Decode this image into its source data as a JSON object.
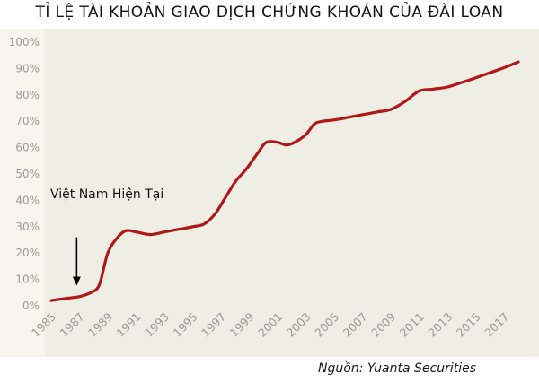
{
  "title": "TỈ LỆ TÀI KHOẢN GIAO DỊCH CHỨNG KHOÁN CỦA ĐÀI LOAN",
  "source": "Nguồn: Yuanta Securities",
  "annotation": "Việt Nam Hiện Tại",
  "colors": {
    "line": "#b01818",
    "plot_bg": "#eeeee4",
    "tick_text": "#999999",
    "arrow": "#000000"
  },
  "chart_data": {
    "type": "line",
    "title": "TỈ LỆ TÀI KHOẢN GIAO DỊCH CHỨNG KHOÁN CỦA ĐÀI LOAN",
    "xlabel": "",
    "ylabel": "",
    "xlim": [
      1985,
      2018
    ],
    "ylim": [
      0,
      100
    ],
    "grid": false,
    "x_ticks": [
      "1985",
      "1987",
      "1989",
      "1991",
      "1993",
      "1995",
      "1997",
      "1999",
      "2001",
      "2003",
      "2005",
      "2007",
      "2009",
      "2011",
      "2013",
      "2015",
      "2017"
    ],
    "y_ticks": [
      "0%",
      "10%",
      "20%",
      "30%",
      "40%",
      "50%",
      "60%",
      "70%",
      "80%",
      "90%",
      "100%"
    ],
    "series": [
      {
        "x": [
          1985,
          1986,
          1987,
          1987.8,
          1988.4,
          1989,
          1989.7,
          1990.3,
          1991,
          1992,
          1993,
          1994,
          1995,
          1995.8,
          1996.6,
          1997.3,
          1998,
          1998.8,
          1999.6,
          2000.2,
          2001,
          2001.6,
          2002.2,
          2003,
          2003.6,
          2004.2,
          2005,
          2006,
          2007,
          2008,
          2009,
          2010,
          2011,
          2012,
          2013,
          2014,
          2015,
          2016,
          2017,
          2018
        ],
        "y": [
          2,
          2.8,
          3.5,
          5,
          8,
          20,
          26,
          28.5,
          28,
          27,
          28,
          29,
          30,
          31,
          35,
          41,
          47,
          52,
          58,
          62,
          62,
          61,
          62,
          65,
          69,
          70,
          70.5,
          71.5,
          72.5,
          73.5,
          74.5,
          77.5,
          81.5,
          82.2,
          83,
          84.7,
          86.5,
          88.4,
          90.3,
          92.5
        ]
      }
    ],
    "annotations": [
      {
        "text": "Việt Nam Hiện Tại",
        "x": 1986.8,
        "y_start": 26,
        "y_end": 8
      }
    ]
  }
}
